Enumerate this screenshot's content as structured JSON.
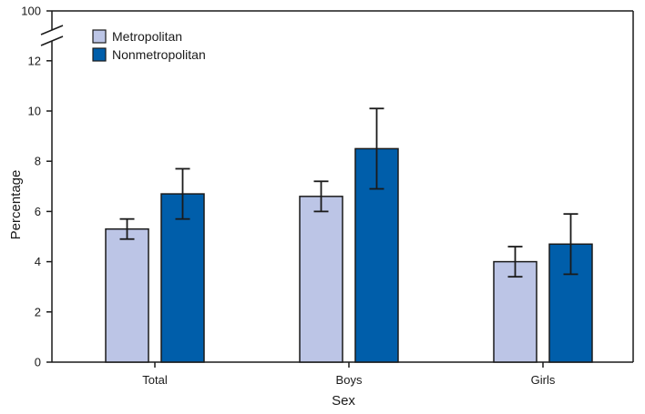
{
  "chart_data": {
    "type": "bar",
    "xlabel": "Sex",
    "ylabel": "Percentage",
    "categories": [
      "Total",
      "Boys",
      "Girls"
    ],
    "series": [
      {
        "name": "Metropolitan",
        "color": "#bcc5e6",
        "values": [
          5.3,
          6.6,
          4.0
        ],
        "error_low": [
          4.9,
          6.0,
          3.4
        ],
        "error_high": [
          5.7,
          7.2,
          4.6
        ]
      },
      {
        "name": "Nonmetropolitan",
        "color": "#005eaa",
        "values": [
          6.7,
          8.5,
          4.7
        ],
        "error_low": [
          5.7,
          6.9,
          3.5
        ],
        "error_high": [
          7.7,
          10.1,
          5.9
        ]
      }
    ],
    "ylim": [
      0,
      13
    ],
    "y_ticks": [
      0,
      2,
      4,
      6,
      8,
      10,
      12
    ],
    "y_tick_labels": [
      "0",
      "2",
      "4",
      "6",
      "8",
      "10",
      "12"
    ],
    "y_break_label": "100",
    "axis_break": true,
    "grid": false,
    "legend_position": "top-left"
  }
}
